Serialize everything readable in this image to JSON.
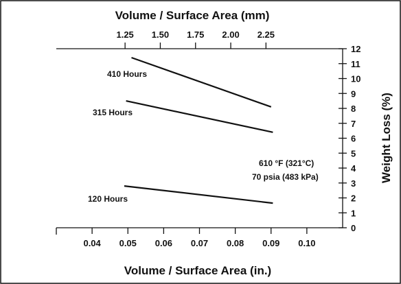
{
  "chart_data": {
    "type": "line",
    "top_axis": {
      "label": "Volume / Surface Area (mm)",
      "ticks": [
        "1.25",
        "1.50",
        "1.75",
        "2.00",
        "2.25"
      ],
      "tick_values": [
        1.25,
        1.5,
        1.75,
        2.0,
        2.25
      ]
    },
    "bottom_axis": {
      "label": "Volume / Surface Area (in.)",
      "ticks": [
        "0.04",
        "0.05",
        "0.06",
        "0.07",
        "0.08",
        "0.09",
        "0.10"
      ],
      "tick_values": [
        0.04,
        0.05,
        0.06,
        0.07,
        0.08,
        0.09,
        0.1
      ],
      "range": [
        0.03,
        0.11
      ]
    },
    "right_axis": {
      "label": "Weight Loss (%)",
      "ticks": [
        "0",
        "1",
        "2",
        "3",
        "4",
        "5",
        "6",
        "7",
        "8",
        "9",
        "10",
        "11",
        "12"
      ],
      "tick_values": [
        0,
        1,
        2,
        3,
        4,
        5,
        6,
        7,
        8,
        9,
        10,
        11,
        12
      ],
      "range": [
        0,
        12
      ]
    },
    "series": [
      {
        "name": "410 Hours",
        "x": [
          0.051,
          0.09
        ],
        "y": [
          11.4,
          8.1
        ]
      },
      {
        "name": "315 Hours",
        "x": [
          0.0495,
          0.0905
        ],
        "y": [
          8.5,
          6.4
        ]
      },
      {
        "name": "120 Hours",
        "x": [
          0.049,
          0.0905
        ],
        "y": [
          2.8,
          1.65
        ]
      }
    ],
    "annotations": [
      "610 °F (321°C)",
      "70 psia (483 kPa)"
    ],
    "grid": false
  }
}
